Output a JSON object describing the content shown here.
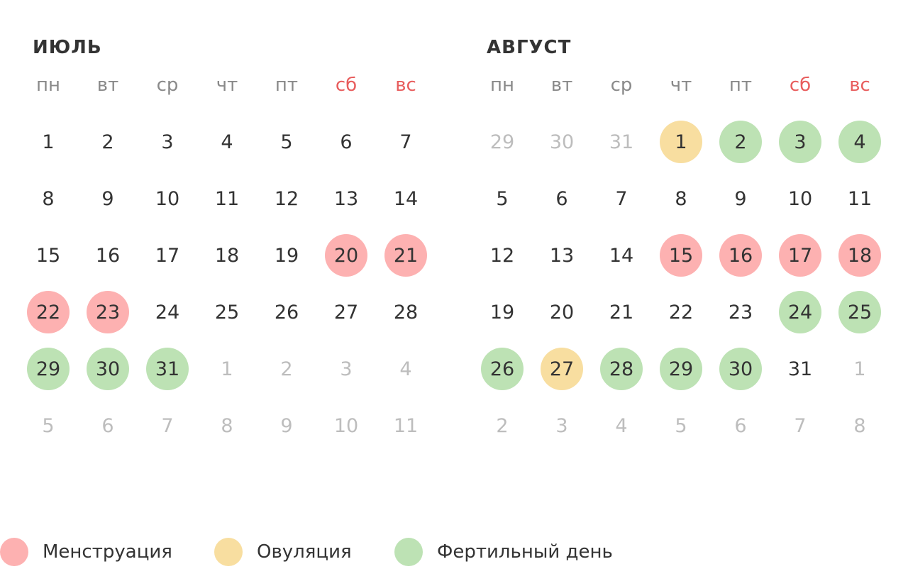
{
  "weekdays": [
    {
      "label": "пн",
      "weekend": false
    },
    {
      "label": "вт",
      "weekend": false
    },
    {
      "label": "ср",
      "weekend": false
    },
    {
      "label": "чт",
      "weekend": false
    },
    {
      "label": "пт",
      "weekend": false
    },
    {
      "label": "сб",
      "weekend": true
    },
    {
      "label": "вс",
      "weekend": true
    }
  ],
  "colors": {
    "menstruation": "#fdb1b1",
    "ovulation": "#f8dea0",
    "fertile": "#bde2b4",
    "weekend": "#e85d5d",
    "muted": "#bdbdbd"
  },
  "months": [
    {
      "title": "ИЮЛЬ",
      "weeks": [
        [
          {
            "d": "1"
          },
          {
            "d": "2"
          },
          {
            "d": "3"
          },
          {
            "d": "4"
          },
          {
            "d": "5"
          },
          {
            "d": "6"
          },
          {
            "d": "7"
          }
        ],
        [
          {
            "d": "8"
          },
          {
            "d": "9"
          },
          {
            "d": "10"
          },
          {
            "d": "11"
          },
          {
            "d": "12"
          },
          {
            "d": "13"
          },
          {
            "d": "14"
          }
        ],
        [
          {
            "d": "15"
          },
          {
            "d": "16"
          },
          {
            "d": "17"
          },
          {
            "d": "18"
          },
          {
            "d": "19"
          },
          {
            "d": "20",
            "type": "menstruation"
          },
          {
            "d": "21",
            "type": "menstruation"
          }
        ],
        [
          {
            "d": "22",
            "type": "menstruation"
          },
          {
            "d": "23",
            "type": "menstruation"
          },
          {
            "d": "24"
          },
          {
            "d": "25"
          },
          {
            "d": "26"
          },
          {
            "d": "27"
          },
          {
            "d": "28"
          }
        ],
        [
          {
            "d": "29",
            "type": "fertile"
          },
          {
            "d": "30",
            "type": "fertile"
          },
          {
            "d": "31",
            "type": "fertile"
          },
          {
            "d": "1",
            "other": true
          },
          {
            "d": "2",
            "other": true
          },
          {
            "d": "3",
            "other": true
          },
          {
            "d": "4",
            "other": true
          }
        ],
        [
          {
            "d": "5",
            "other": true
          },
          {
            "d": "6",
            "other": true
          },
          {
            "d": "7",
            "other": true
          },
          {
            "d": "8",
            "other": true
          },
          {
            "d": "9",
            "other": true
          },
          {
            "d": "10",
            "other": true
          },
          {
            "d": "11",
            "other": true
          }
        ]
      ]
    },
    {
      "title": "АВГУСТ",
      "weeks": [
        [
          {
            "d": "29",
            "other": true
          },
          {
            "d": "30",
            "other": true
          },
          {
            "d": "31",
            "other": true
          },
          {
            "d": "1",
            "type": "ovulation"
          },
          {
            "d": "2",
            "type": "fertile"
          },
          {
            "d": "3",
            "type": "fertile"
          },
          {
            "d": "4",
            "type": "fertile"
          }
        ],
        [
          {
            "d": "5"
          },
          {
            "d": "6"
          },
          {
            "d": "7"
          },
          {
            "d": "8"
          },
          {
            "d": "9"
          },
          {
            "d": "10"
          },
          {
            "d": "11"
          }
        ],
        [
          {
            "d": "12"
          },
          {
            "d": "13"
          },
          {
            "d": "14"
          },
          {
            "d": "15",
            "type": "menstruation"
          },
          {
            "d": "16",
            "type": "menstruation"
          },
          {
            "d": "17",
            "type": "menstruation"
          },
          {
            "d": "18",
            "type": "menstruation"
          }
        ],
        [
          {
            "d": "19"
          },
          {
            "d": "20"
          },
          {
            "d": "21"
          },
          {
            "d": "22"
          },
          {
            "d": "23"
          },
          {
            "d": "24",
            "type": "fertile"
          },
          {
            "d": "25",
            "type": "fertile"
          }
        ],
        [
          {
            "d": "26",
            "type": "fertile"
          },
          {
            "d": "27",
            "type": "ovulation"
          },
          {
            "d": "28",
            "type": "fertile"
          },
          {
            "d": "29",
            "type": "fertile"
          },
          {
            "d": "30",
            "type": "fertile"
          },
          {
            "d": "31"
          },
          {
            "d": "1",
            "other": true
          }
        ],
        [
          {
            "d": "2",
            "other": true
          },
          {
            "d": "3",
            "other": true
          },
          {
            "d": "4",
            "other": true
          },
          {
            "d": "5",
            "other": true
          },
          {
            "d": "6",
            "other": true
          },
          {
            "d": "7",
            "other": true
          },
          {
            "d": "8",
            "other": true
          }
        ]
      ]
    }
  ],
  "legend": [
    {
      "label": "Менструация",
      "type": "menstruation"
    },
    {
      "label": "Овуляция",
      "type": "ovulation"
    },
    {
      "label": "Фертильный день",
      "type": "fertile"
    }
  ]
}
